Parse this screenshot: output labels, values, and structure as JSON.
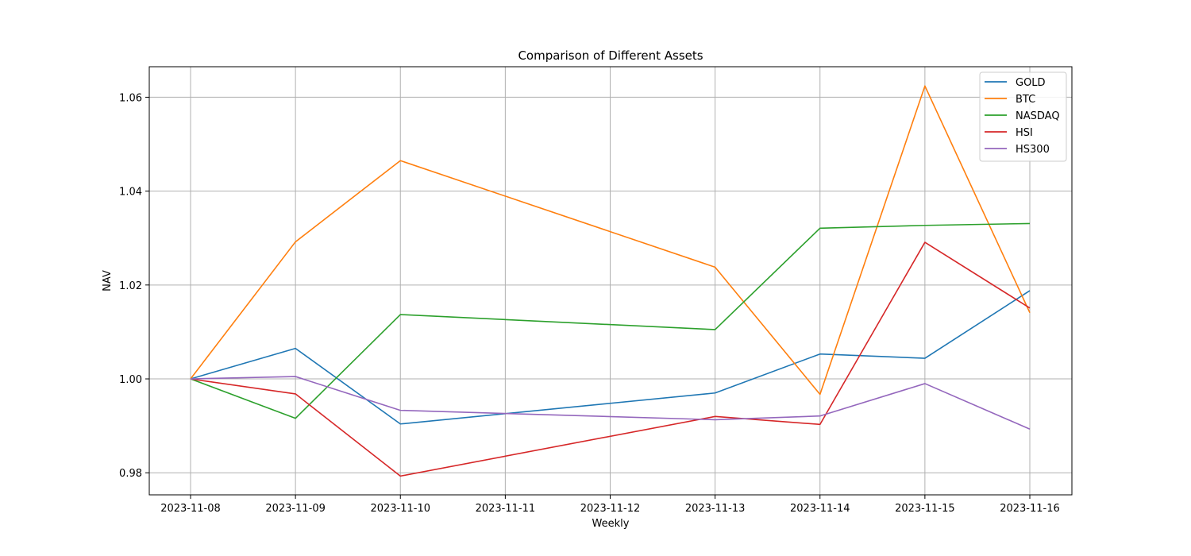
{
  "chart_data": {
    "type": "line",
    "title": "Comparison of Different Assets",
    "xlabel": "Weekly",
    "ylabel": "NAV",
    "x": [
      "2023-11-08",
      "2023-11-09",
      "2023-11-10",
      "2023-11-13",
      "2023-11-14",
      "2023-11-15",
      "2023-11-16"
    ],
    "x_ticks": [
      "2023-11-08",
      "2023-11-09",
      "2023-11-10",
      "2023-11-11",
      "2023-11-12",
      "2023-11-13",
      "2023-11-14",
      "2023-11-15",
      "2023-11-16"
    ],
    "x_range": [
      "2023-11-08",
      "2023-11-16"
    ],
    "y_ticks": [
      0.98,
      1.0,
      1.02,
      1.04,
      1.06
    ],
    "y_tick_labels": [
      "0.98",
      "1.00",
      "1.02",
      "1.04",
      "1.06"
    ],
    "ylim": [
      0.9753,
      1.0665
    ],
    "grid": true,
    "legend_position": "top-right",
    "series": [
      {
        "name": "GOLD",
        "color": "#1f77b4",
        "values": [
          1.0,
          1.0065,
          0.9904,
          0.997,
          1.0053,
          1.0044,
          1.0188
        ]
      },
      {
        "name": "BTC",
        "color": "#ff7f0e",
        "values": [
          1.0,
          1.0292,
          1.0465,
          1.0238,
          0.9967,
          1.0624,
          1.0141
        ]
      },
      {
        "name": "NASDAQ",
        "color": "#2ca02c",
        "values": [
          1.0,
          0.9916,
          1.0137,
          1.0105,
          1.0321,
          1.0327,
          1.0331
        ]
      },
      {
        "name": "HSI",
        "color": "#d62728",
        "values": [
          1.0,
          0.9968,
          0.9793,
          0.992,
          0.9903,
          1.0291,
          1.0151
        ]
      },
      {
        "name": "HS300",
        "color": "#9467bd",
        "values": [
          1.0,
          1.0005,
          0.9933,
          0.9913,
          0.9921,
          0.999,
          0.9893
        ]
      }
    ]
  }
}
